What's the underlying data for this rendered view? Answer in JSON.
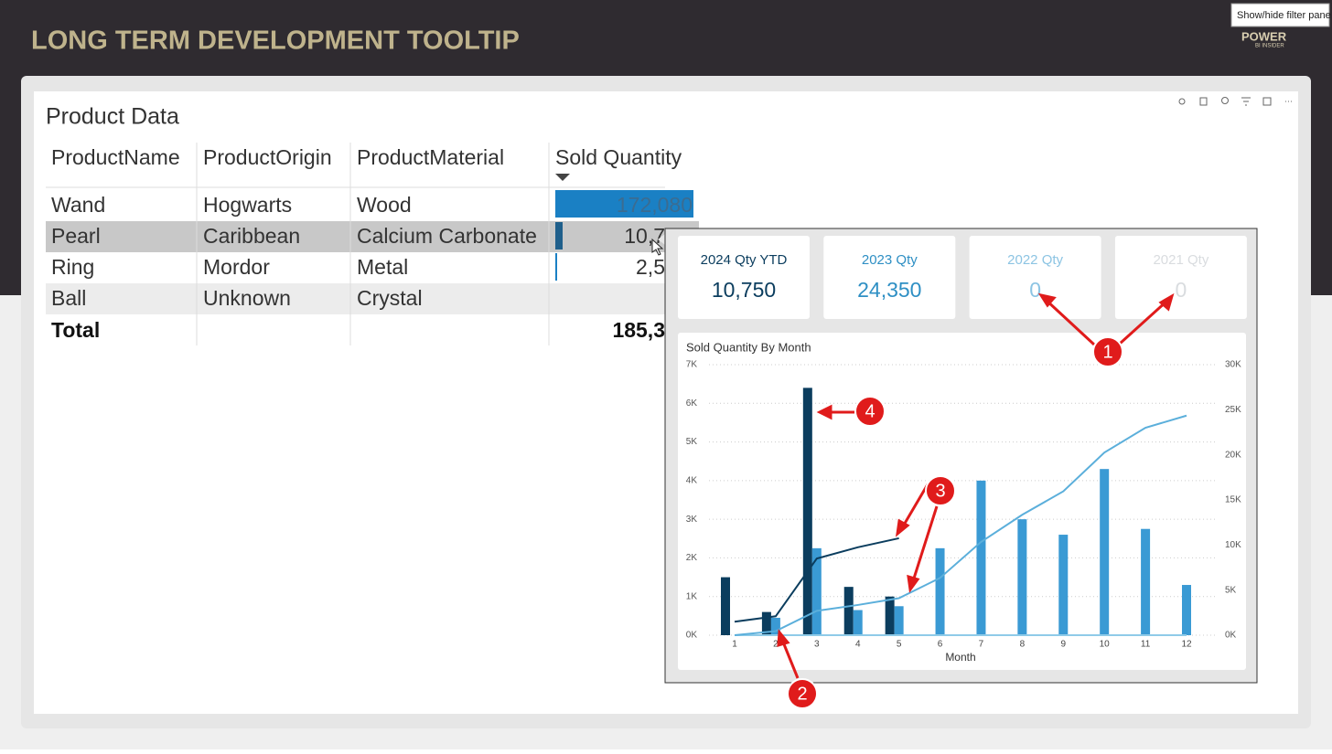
{
  "header": {
    "title": "LONG TERM DEVELOPMENT TOOLTIP",
    "logo": "POWER",
    "logo_sub": "BI INSIDER",
    "filter_tooltip": "Show/hide filter pane"
  },
  "visual": {
    "title": "Product Data"
  },
  "table": {
    "columns": [
      "ProductName",
      "ProductOrigin",
      "ProductMaterial",
      "Sold Quantity"
    ],
    "rows": [
      [
        "Wand",
        "Hogwarts",
        "Wood",
        "172,080"
      ],
      [
        "Pearl",
        "Caribbean",
        "Calcium Carbonate",
        "10,7"
      ],
      [
        "Ring",
        "Mordor",
        "Metal",
        "2,5"
      ],
      [
        "Ball",
        "Unknown",
        "Crystal"
      ]
    ],
    "total": {
      "label": "Total",
      "value": "185,3"
    }
  },
  "cards": [
    {
      "label": "2024 Qty YTD",
      "value": "10,750",
      "color": "#0b3d5e"
    },
    {
      "label": "2023 Qty",
      "value": "24,350",
      "color": "#2e8fc4"
    },
    {
      "label": "2022 Qty",
      "value": "0",
      "color": "#8cc4e3"
    },
    {
      "label": "2021 Qty",
      "value": "0",
      "color": "#d9dcdf"
    }
  ],
  "chart_data": {
    "type": "combo",
    "title": "Sold Quantity By Month",
    "xlabel": "Month",
    "categories": [
      1,
      2,
      3,
      4,
      5,
      6,
      7,
      8,
      9,
      10,
      11,
      12
    ],
    "series": [
      {
        "kind": "bar",
        "color": "#0b3d5e",
        "values": [
          1500,
          600,
          6400,
          1250,
          1000,
          null,
          null,
          null,
          null,
          null,
          null,
          null
        ]
      },
      {
        "kind": "bar",
        "color": "#3a9ad4",
        "values": [
          0,
          450,
          2250,
          650,
          750,
          2250,
          4000,
          3000,
          2600,
          4300,
          2750,
          1300
        ]
      },
      {
        "kind": "line",
        "axis": "y2",
        "color": "#8fcbe8",
        "values": [
          0,
          0,
          0,
          0,
          0,
          0,
          0,
          0,
          0,
          0,
          0,
          0
        ]
      },
      {
        "kind": "line",
        "axis": "y2",
        "color": "#0b3d5e",
        "values": [
          1500,
          2100,
          8500,
          9750,
          10750,
          null,
          null,
          null,
          null,
          null,
          null,
          null
        ]
      },
      {
        "kind": "line",
        "axis": "y2",
        "color": "#5bafdb",
        "values": [
          0,
          450,
          2700,
          3350,
          4100,
          6350,
          10350,
          13350,
          15950,
          20250,
          23000,
          24350
        ]
      }
    ],
    "ylim": [
      0,
      7000
    ],
    "yticks": [
      {
        "value": 0,
        "label": "0K"
      },
      {
        "value": 1000,
        "label": "1K"
      },
      {
        "value": 2000,
        "label": "2K"
      },
      {
        "value": 3000,
        "label": "3K"
      },
      {
        "value": 4000,
        "label": "4K"
      },
      {
        "value": 5000,
        "label": "5K"
      },
      {
        "value": 6000,
        "label": "6K"
      },
      {
        "value": 7000,
        "label": "7K"
      }
    ],
    "y2lim": [
      0,
      30000
    ],
    "y2ticks": [
      {
        "value": 0,
        "label": "0K"
      },
      {
        "value": 5000,
        "label": "5K"
      },
      {
        "value": 10000,
        "label": "10K"
      },
      {
        "value": 15000,
        "label": "15K"
      },
      {
        "value": 20000,
        "label": "20K"
      },
      {
        "value": 25000,
        "label": "25K"
      },
      {
        "value": 30000,
        "label": "30K"
      }
    ],
    "grid": true
  },
  "annotations": [
    "1",
    "2",
    "3",
    "4"
  ]
}
